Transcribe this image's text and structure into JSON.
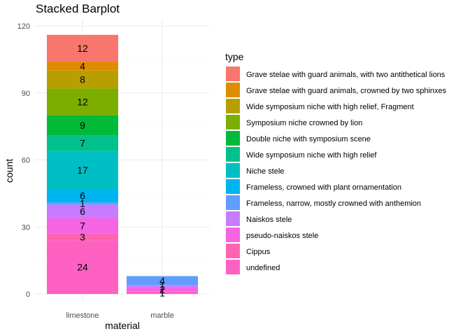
{
  "chart_data": {
    "type": "bar",
    "stacked": true,
    "title": "Stacked Barplot",
    "xlabel": "material",
    "ylabel": "count",
    "ylim": [
      0,
      120
    ],
    "yticks": [
      0,
      30,
      60,
      90,
      120
    ],
    "categories": [
      "limestone",
      "marble"
    ],
    "legend_title": "type",
    "legend_position": "right",
    "grid": true,
    "series": [
      {
        "name": "Grave stelae with guard animals, with two antithetical lions",
        "color": "#F8766D",
        "values": [
          12,
          0
        ]
      },
      {
        "name": "Grave stelae with guard animals, crowned by two sphinxes",
        "color": "#DE8C00",
        "values": [
          4,
          0
        ]
      },
      {
        "name": "Wide symposium niche with high relief, Fragment",
        "color": "#B79F00",
        "values": [
          8,
          0
        ]
      },
      {
        "name": "Symposium niche crowned by lion",
        "color": "#7CAE00",
        "values": [
          12,
          0
        ]
      },
      {
        "name": "Double niche with symposium scene",
        "color": "#00BA38",
        "values": [
          9,
          0
        ]
      },
      {
        "name": "Wide symposium niche with high relief",
        "color": "#00C08B",
        "values": [
          7,
          0
        ]
      },
      {
        "name": "Niche stele",
        "color": "#00BFC4",
        "values": [
          17,
          0
        ]
      },
      {
        "name": "Frameless, crowned with plant ornamentation",
        "color": "#00B4F0",
        "values": [
          6,
          0
        ]
      },
      {
        "name": "Frameless, narrow, mostly crowned with anthemion",
        "color": "#619CFF",
        "values": [
          1,
          4
        ]
      },
      {
        "name": "Naiskos stele",
        "color": "#C77CFF",
        "values": [
          6,
          1
        ]
      },
      {
        "name": "pseudo-naiskos stele",
        "color": "#F564E3",
        "values": [
          7,
          2
        ]
      },
      {
        "name": "Cippus",
        "color": "#FF64B0",
        "values": [
          3,
          0
        ]
      },
      {
        "name": "undefined",
        "color": "#FF61C3",
        "values": [
          24,
          1
        ]
      }
    ]
  }
}
